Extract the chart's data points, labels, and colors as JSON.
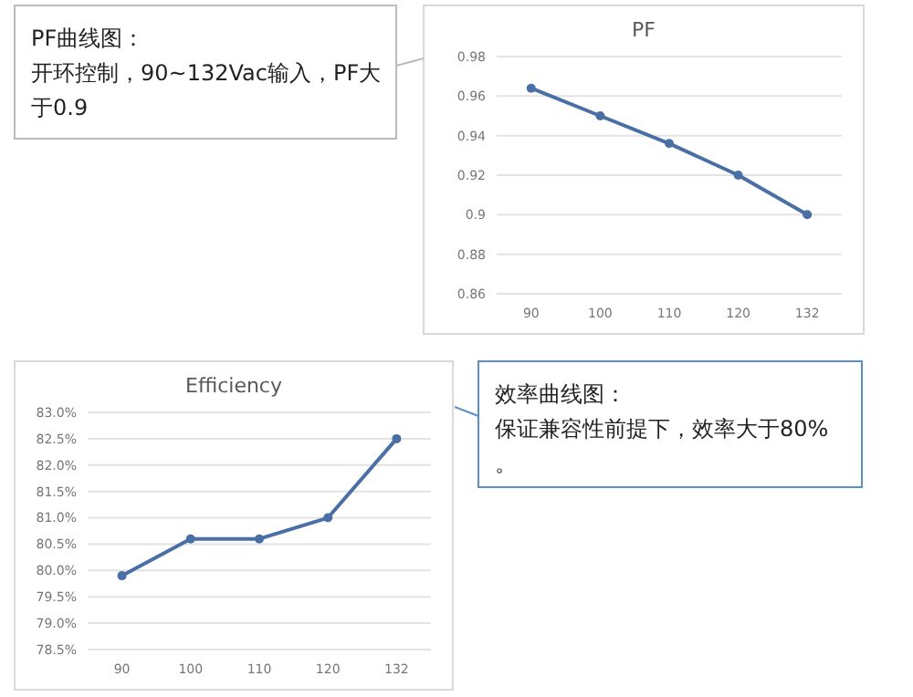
{
  "chart_data": [
    {
      "type": "line",
      "title": "PF",
      "categories": [
        "90",
        "100",
        "110",
        "120",
        "132"
      ],
      "series": [
        {
          "color": "#4a6fa5",
          "values": [
            0.964,
            0.95,
            0.936,
            0.92,
            0.9
          ]
        }
      ],
      "ylim": [
        0.86,
        0.98
      ],
      "yticks": [
        0.86,
        0.88,
        0.9,
        0.92,
        0.94,
        0.96,
        0.98
      ],
      "grid": "y",
      "marker": "circle",
      "annotations": [
        "PF曲线图：",
        "开环控制，90~132Vac输入，PF大于0.9"
      ]
    },
    {
      "type": "line",
      "title": "Efficiency",
      "categories": [
        "90",
        "100",
        "110",
        "120",
        "132"
      ],
      "series": [
        {
          "color": "#4a6fa5",
          "values": [
            79.9,
            80.6,
            80.6,
            81.0,
            82.5
          ]
        }
      ],
      "ylim": [
        78.5,
        83.0
      ],
      "yticks": [
        {
          "value": 78.5,
          "label": "78.5%"
        },
        {
          "value": 79,
          "label": "79.0%"
        },
        {
          "value": 79.5,
          "label": "79.5%"
        },
        {
          "value": 80,
          "label": "80.0%"
        },
        {
          "value": 80.5,
          "label": "80.5%"
        },
        {
          "value": 81,
          "label": "81.0%"
        },
        {
          "value": 81.5,
          "label": "81.5%"
        },
        {
          "value": 82,
          "label": "82.0%"
        },
        {
          "value": 82.5,
          "label": "82.5%"
        },
        {
          "value": 83,
          "label": "83.0%"
        }
      ],
      "grid": "y",
      "marker": "circle",
      "annotations": [
        "效率曲线图：",
        "保证兼容性前提下，效率大于80%。"
      ]
    }
  ]
}
